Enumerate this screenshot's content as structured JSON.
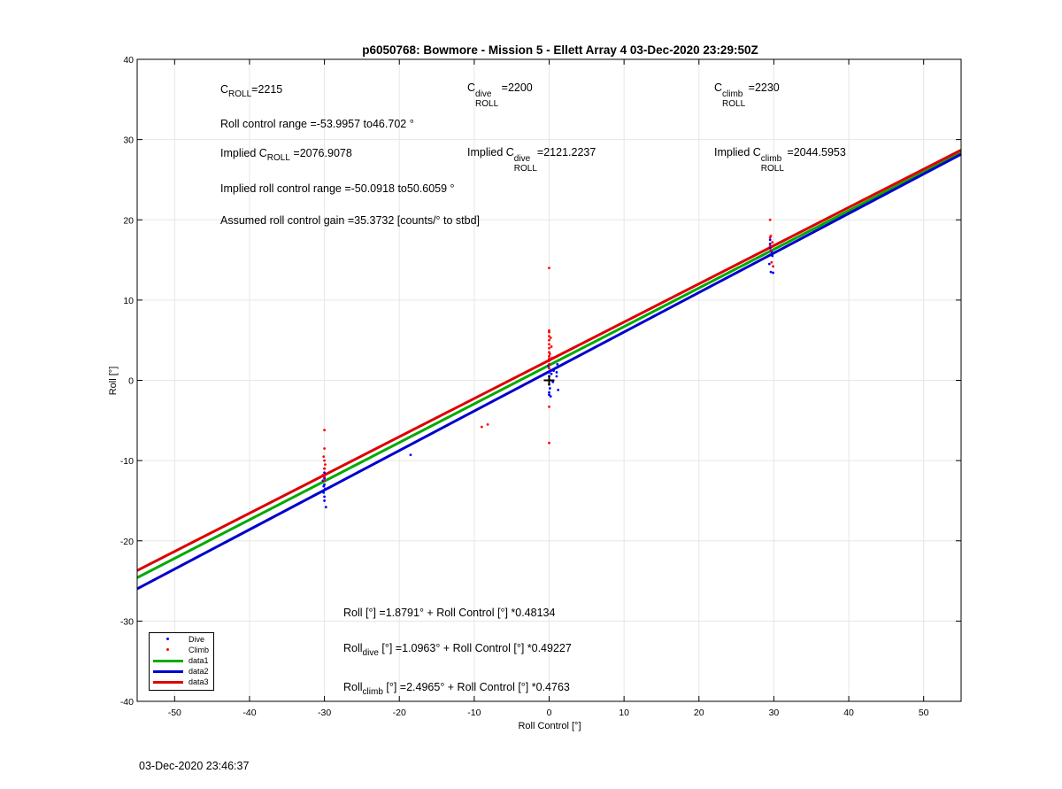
{
  "chart_data": {
    "type": "scatter",
    "title": "p6050768: Bowmore - Mission 5 - Ellett Array 4 03-Dec-2020 23:29:50Z",
    "xlabel": "Roll Control [°]",
    "ylabel": "Roll [°]",
    "xlim": [
      -55,
      55
    ],
    "ylim": [
      -40,
      40
    ],
    "xticks": [
      -50,
      -40,
      -30,
      -20,
      -10,
      0,
      10,
      20,
      30,
      40,
      50
    ],
    "yticks": [
      -40,
      -30,
      -20,
      -10,
      0,
      10,
      20,
      30,
      40
    ],
    "grid": true,
    "legend_position": "bottom-left",
    "series": [
      {
        "name": "Dive",
        "kind": "points",
        "color": "#0000ff",
        "points": [
          [
            -30,
            -11
          ],
          [
            -30,
            -11.5
          ],
          [
            -30,
            -12
          ],
          [
            -30.2,
            -12.5
          ],
          [
            -30,
            -13
          ],
          [
            -29.9,
            -13.5
          ],
          [
            -30.1,
            -14
          ],
          [
            -30,
            -14.5
          ],
          [
            -30,
            -15
          ],
          [
            -29.8,
            -15.8
          ],
          [
            -30,
            -12.2
          ],
          [
            -30.1,
            -13.2
          ],
          [
            -18.5,
            -9.3
          ],
          [
            0,
            2.5
          ],
          [
            0,
            2
          ],
          [
            0,
            1.5
          ],
          [
            0,
            1
          ],
          [
            0,
            0.5
          ],
          [
            0,
            0
          ],
          [
            0,
            -0.5
          ],
          [
            0.1,
            -1
          ],
          [
            0,
            -1.5
          ],
          [
            0.2,
            -2
          ],
          [
            -0.1,
            1.8
          ],
          [
            0.3,
            0.8
          ],
          [
            0.5,
            -0.2
          ],
          [
            1,
            0.5
          ],
          [
            1,
            1
          ],
          [
            1.2,
            -1.2
          ],
          [
            1.1,
            2
          ],
          [
            0.6,
            1.2
          ],
          [
            0,
            -1.8
          ],
          [
            29.5,
            17
          ],
          [
            29.5,
            16.5
          ],
          [
            29.8,
            15.5
          ],
          [
            29.4,
            14.5
          ],
          [
            29.6,
            13.5
          ],
          [
            29.9,
            13.4
          ],
          [
            29.5,
            17.5
          ],
          [
            29.7,
            16
          ]
        ]
      },
      {
        "name": "Climb",
        "kind": "points",
        "color": "#ff0000",
        "points": [
          [
            -30,
            -6.2
          ],
          [
            -30,
            -8.5
          ],
          [
            -30.1,
            -9.5
          ],
          [
            -30,
            -10
          ],
          [
            -29.9,
            -10.5
          ],
          [
            -30,
            -11
          ],
          [
            -30,
            -12
          ],
          [
            -30,
            -12.5
          ],
          [
            -30.2,
            -11.8
          ],
          [
            -9,
            -5.8
          ],
          [
            -8.2,
            -5.5
          ],
          [
            0,
            14
          ],
          [
            0,
            6.2
          ],
          [
            0,
            6
          ],
          [
            0,
            5.5
          ],
          [
            0,
            5
          ],
          [
            0,
            4.5
          ],
          [
            0,
            4
          ],
          [
            0,
            3.5
          ],
          [
            0,
            3
          ],
          [
            0,
            2.7
          ],
          [
            0,
            2.4
          ],
          [
            0,
            2
          ],
          [
            0,
            1.5
          ],
          [
            0.2,
            5.3
          ],
          [
            0.3,
            4.2
          ],
          [
            0.1,
            3.3
          ],
          [
            0.4,
            2.8
          ],
          [
            0,
            -3.3
          ],
          [
            0,
            -7.8
          ],
          [
            29.5,
            20
          ],
          [
            29.6,
            18
          ],
          [
            29.5,
            17.8
          ],
          [
            29.8,
            17.2
          ],
          [
            29.5,
            16.8
          ],
          [
            29.7,
            14.7
          ],
          [
            29.9,
            14.2
          ],
          [
            29.6,
            16.2
          ]
        ]
      },
      {
        "name": "data1",
        "kind": "line",
        "color": "#00aa00",
        "intercept": 1.8791,
        "slope": 0.48134
      },
      {
        "name": "data2",
        "kind": "line",
        "color": "#0000cc",
        "intercept": 1.0963,
        "slope": 0.49227
      },
      {
        "name": "data3",
        "kind": "line",
        "color": "#dd0000",
        "intercept": 2.4965,
        "slope": 0.4763
      }
    ],
    "marker": {
      "x": 0,
      "y": 0,
      "symbol": "+"
    }
  },
  "annotations": {
    "croll": {
      "c": "C",
      "sub": "ROLL",
      "value": "=2215"
    },
    "croll_dive": {
      "c": "C",
      "sup": "dive",
      "sub": "ROLL",
      "value": "=2200"
    },
    "croll_climb": {
      "c": "C",
      "sup": "climb",
      "sub": "ROLL",
      "value": "=2230"
    },
    "roll_range": "Roll control range =-53.9957 to46.702 °",
    "implied_croll": {
      "prefix": "Implied C",
      "sub": "ROLL",
      "value": "=2076.9078"
    },
    "implied_croll_dive": {
      "prefix": "Implied C",
      "sup": "dive",
      "sub": "ROLL",
      "value": "=2121.2237"
    },
    "implied_croll_climb": {
      "prefix": "Implied C",
      "sup": "climb",
      "sub": "ROLL",
      "value": "=2044.5953"
    },
    "implied_range": "Implied roll control range =-50.0918 to50.6059 °",
    "gain": "Assumed roll control gain =35.3732 [counts/° to stbd]",
    "fit_all": "Roll [°] =1.8791° + Roll Control [°] *0.48134",
    "fit_dive": {
      "prefix": "Roll",
      "sub": "dive",
      "rest": " [°] =1.0963° + Roll Control [°] *0.49227"
    },
    "fit_climb": {
      "prefix": "Roll",
      "sub": "climb",
      "rest": " [°] =2.4965° + Roll Control [°] *0.4763"
    }
  },
  "legend": [
    {
      "label": "Dive",
      "kind": "dot",
      "color": "#0000ff"
    },
    {
      "label": "Climb",
      "kind": "dot",
      "color": "#ff0000"
    },
    {
      "label": "data1",
      "kind": "line",
      "color": "#00aa00"
    },
    {
      "label": "data2",
      "kind": "line",
      "color": "#0000cc"
    },
    {
      "label": "data3",
      "kind": "line",
      "color": "#dd0000"
    }
  ],
  "footer": {
    "timestamp": "03-Dec-2020 23:46:37"
  }
}
